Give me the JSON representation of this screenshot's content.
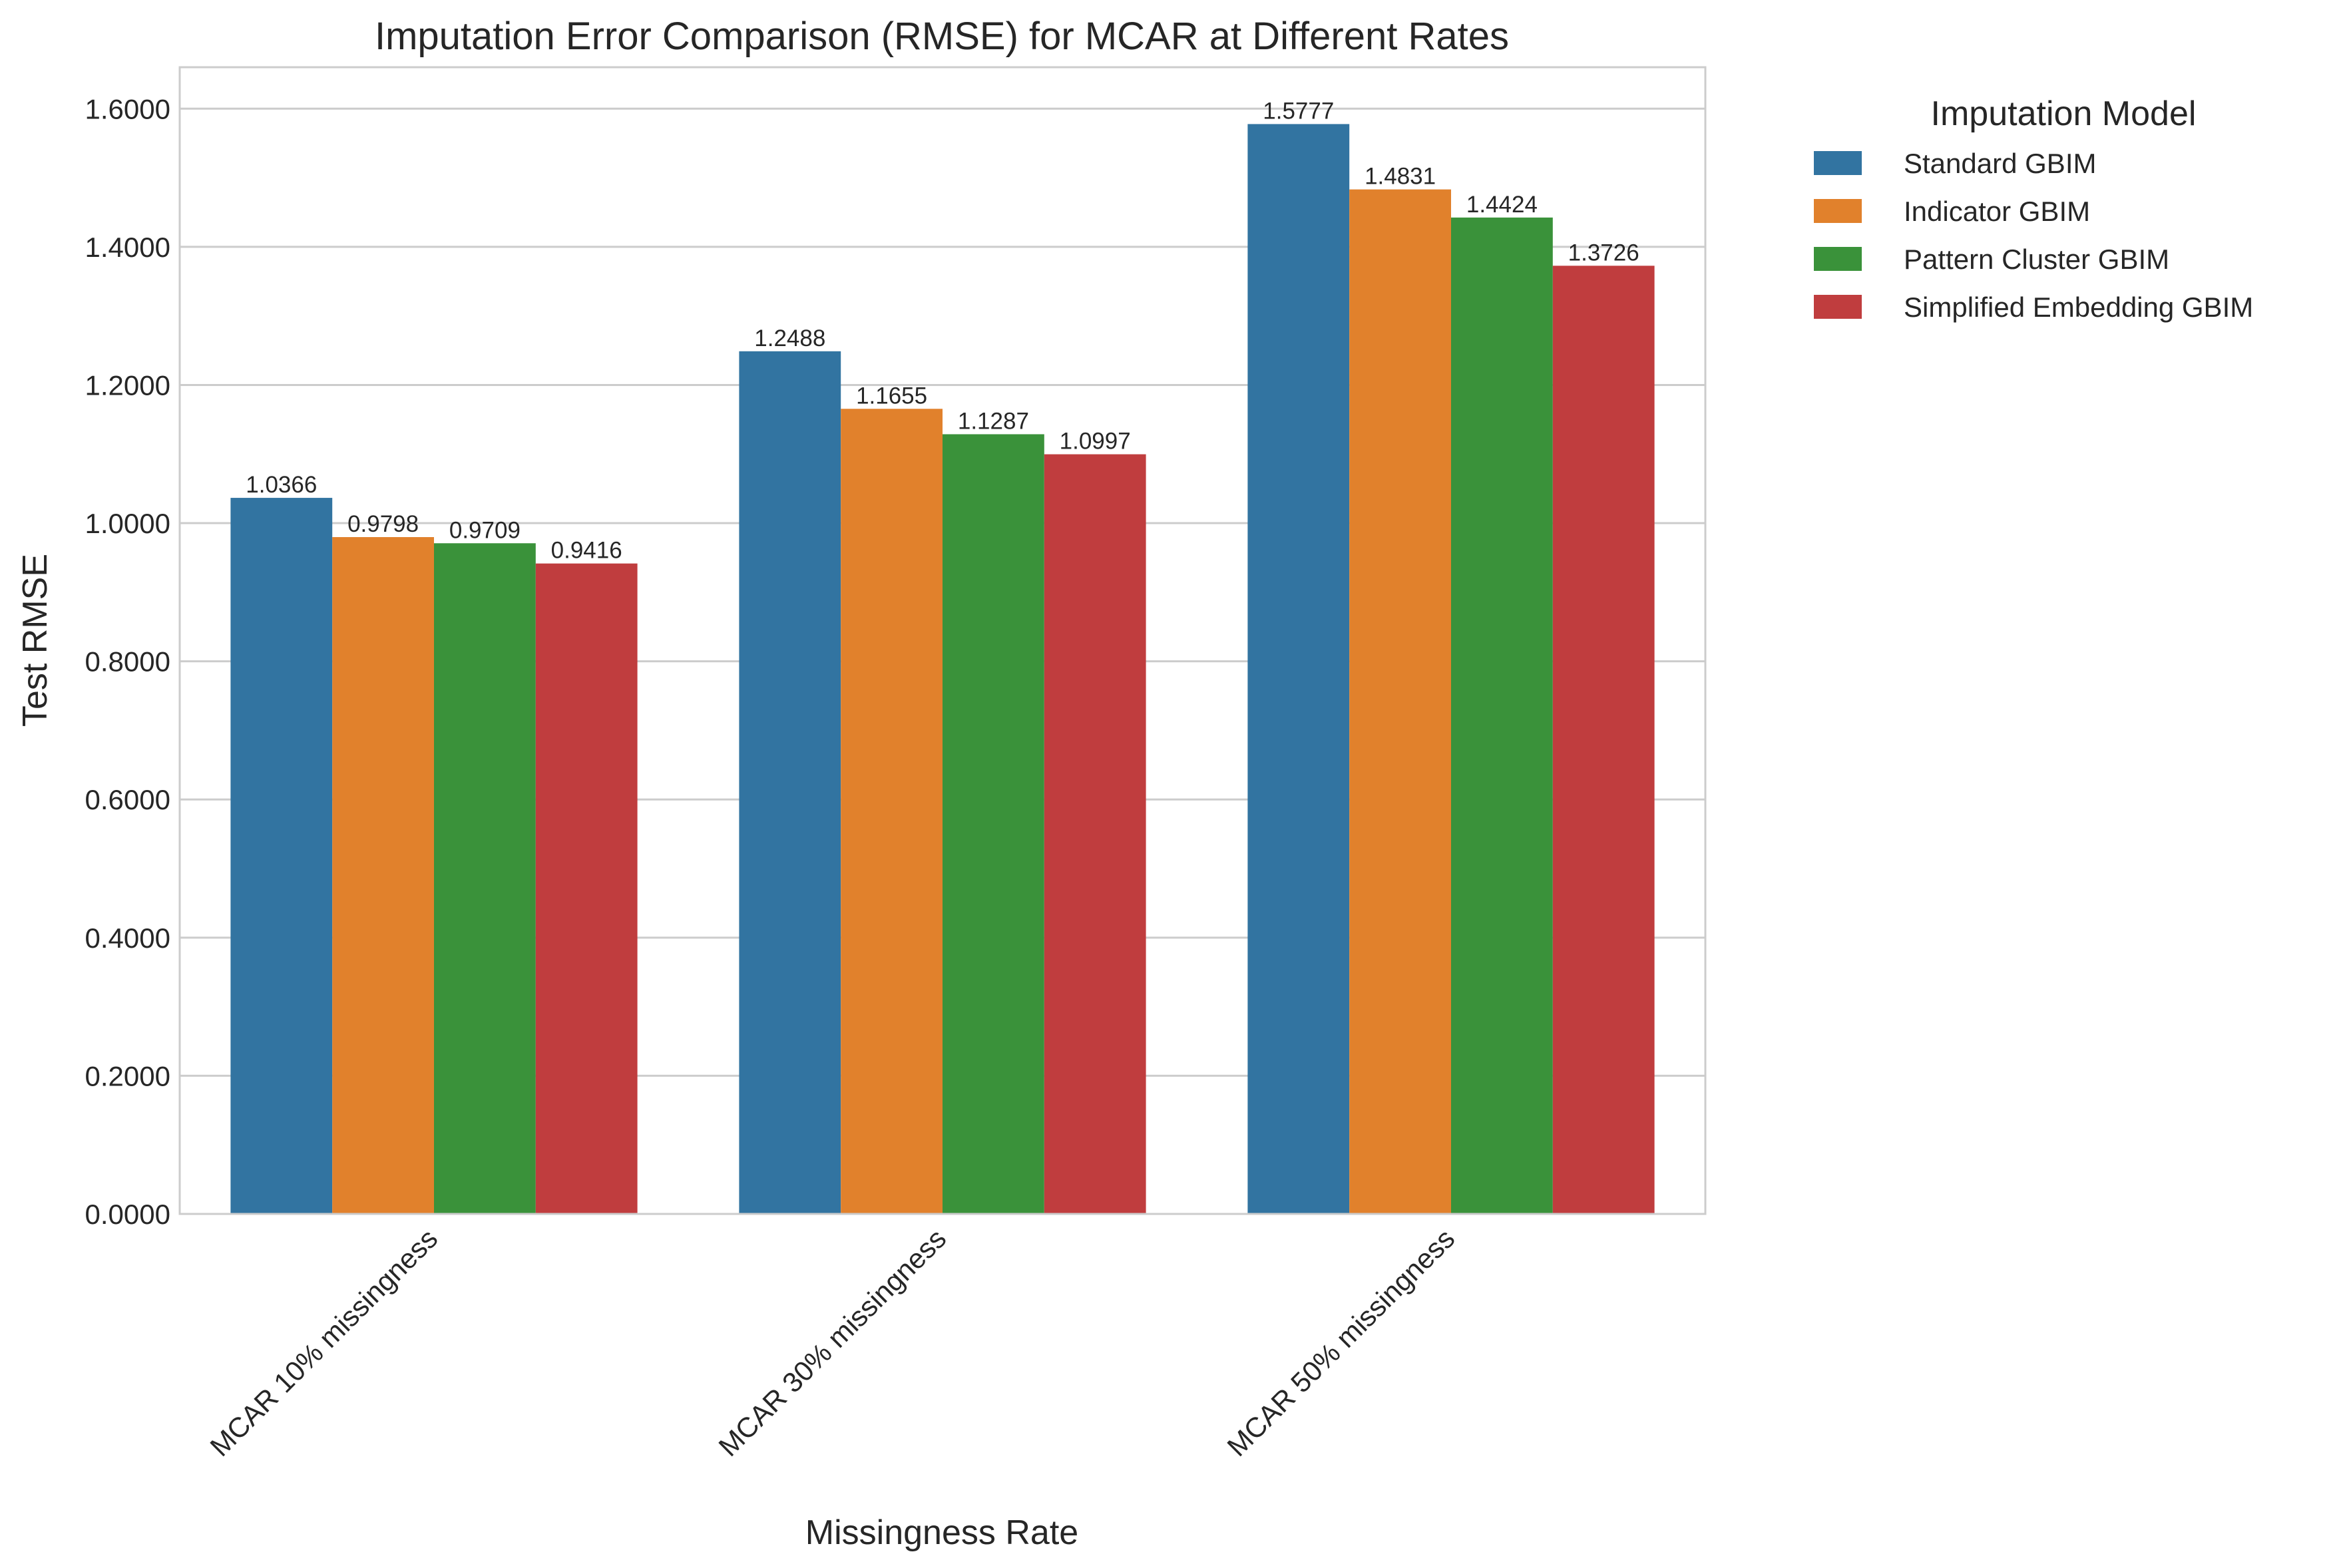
{
  "chart_data": {
    "type": "bar",
    "title": "Imputation Error Comparison (RMSE) for MCAR at Different Rates",
    "xlabel": "Missingness Rate",
    "ylabel": "Test RMSE",
    "ylim": [
      0,
      1.66
    ],
    "yticks": [
      "0.0000",
      "0.2000",
      "0.4000",
      "0.6000",
      "0.8000",
      "1.0000",
      "1.2000",
      "1.4000",
      "1.6000"
    ],
    "grid": true,
    "categories": [
      "MCAR 10% missingness",
      "MCAR 30% missingness",
      "MCAR 50% missingness"
    ],
    "series": [
      {
        "name": "Standard GBIM",
        "color": "#3274a1",
        "values": [
          1.0366,
          1.2488,
          1.5777
        ],
        "labels": [
          "1.0366",
          "1.2488",
          "1.5777"
        ]
      },
      {
        "name": "Indicator GBIM",
        "color": "#e1812c",
        "values": [
          0.9798,
          1.1655,
          1.4831
        ],
        "labels": [
          "0.9798",
          "1.1655",
          "1.4831"
        ]
      },
      {
        "name": "Pattern Cluster GBIM",
        "color": "#3a923a",
        "values": [
          0.9709,
          1.1287,
          1.4424
        ],
        "labels": [
          "0.9709",
          "1.1287",
          "1.4424"
        ]
      },
      {
        "name": "Simplified Embedding GBIM",
        "color": "#c03d3e",
        "values": [
          0.9416,
          1.0997,
          1.3726
        ],
        "labels": [
          "0.9416",
          "1.0997",
          "1.3726"
        ]
      }
    ],
    "legend": {
      "title": "Imputation Model",
      "placement": "outside-top-right"
    }
  }
}
